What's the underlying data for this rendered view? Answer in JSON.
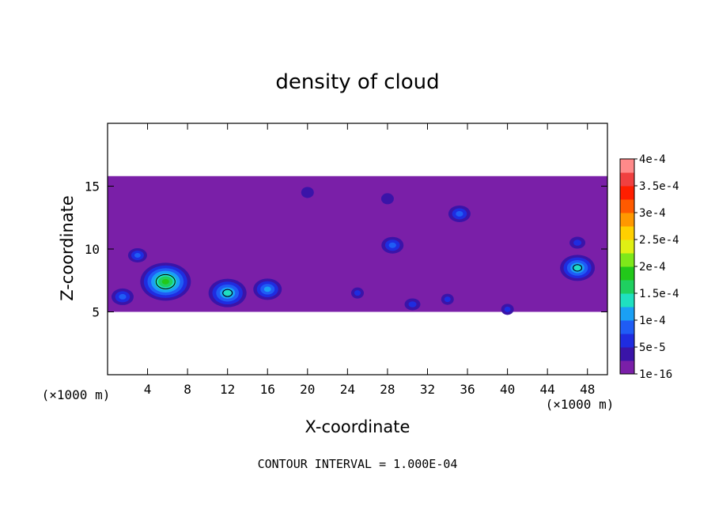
{
  "chart_data": {
    "type": "heatmap",
    "title": "density of cloud",
    "xlabel": "X-coordinate",
    "ylabel": "Z-coordinate",
    "x_unit_left": "(×1000 m)",
    "x_unit_right": "(×1000 m)",
    "xlim": [
      0,
      50
    ],
    "ylim": [
      0,
      20
    ],
    "x_ticks": [
      4,
      8,
      12,
      16,
      20,
      24,
      28,
      32,
      36,
      40,
      44,
      48
    ],
    "y_ticks": [
      5,
      10,
      15
    ],
    "contour_interval_text": "CONTOUR INTERVAL = 1.000E-04",
    "colorbar": {
      "labels": [
        "1e-16",
        "5e-5",
        "1e-4",
        "1.5e-4",
        "2e-4",
        "2.5e-4",
        "3e-4",
        "3.5e-4",
        "4e-4"
      ],
      "colors": [
        "#7a1fa8",
        "#3a14a8",
        "#1f2ce0",
        "#1f5cf5",
        "#1aa0f5",
        "#1fe0c0",
        "#1fd060",
        "#22c81a",
        "#7ee81a",
        "#e0f014",
        "#ffd000",
        "#ff9800",
        "#ff5a00",
        "#ff1e00",
        "#f04040",
        "#ff8a8a"
      ]
    },
    "region": {
      "cloud_base_z": 5,
      "cloud_top_z": 15.8,
      "color_min": "#7a1fa8"
    },
    "cores": [
      {
        "x": 5.8,
        "z": 7.4,
        "peak": 0.00016
      },
      {
        "x": 12.0,
        "z": 6.5,
        "peak": 0.00012
      },
      {
        "x": 16.0,
        "z": 6.8,
        "peak": 9e-05
      },
      {
        "x": 3.0,
        "z": 9.5,
        "peak": 6e-05
      },
      {
        "x": 1.5,
        "z": 6.2,
        "peak": 7e-05
      },
      {
        "x": 28.5,
        "z": 10.3,
        "peak": 7e-05
      },
      {
        "x": 35.2,
        "z": 12.8,
        "peak": 7e-05
      },
      {
        "x": 47.0,
        "z": 8.5,
        "peak": 0.00011
      },
      {
        "x": 47.0,
        "z": 10.5,
        "peak": 5e-05
      },
      {
        "x": 30.5,
        "z": 5.6,
        "peak": 5e-05
      },
      {
        "x": 34.0,
        "z": 6.0,
        "peak": 4e-05
      },
      {
        "x": 40.0,
        "z": 5.2,
        "peak": 3e-05
      },
      {
        "x": 25.0,
        "z": 6.5,
        "peak": 3e-05
      },
      {
        "x": 20.0,
        "z": 14.5,
        "peak": 2.5e-05
      },
      {
        "x": 28.0,
        "z": 14.0,
        "peak": 2.5e-05
      }
    ],
    "contour_level": 0.0001
  }
}
